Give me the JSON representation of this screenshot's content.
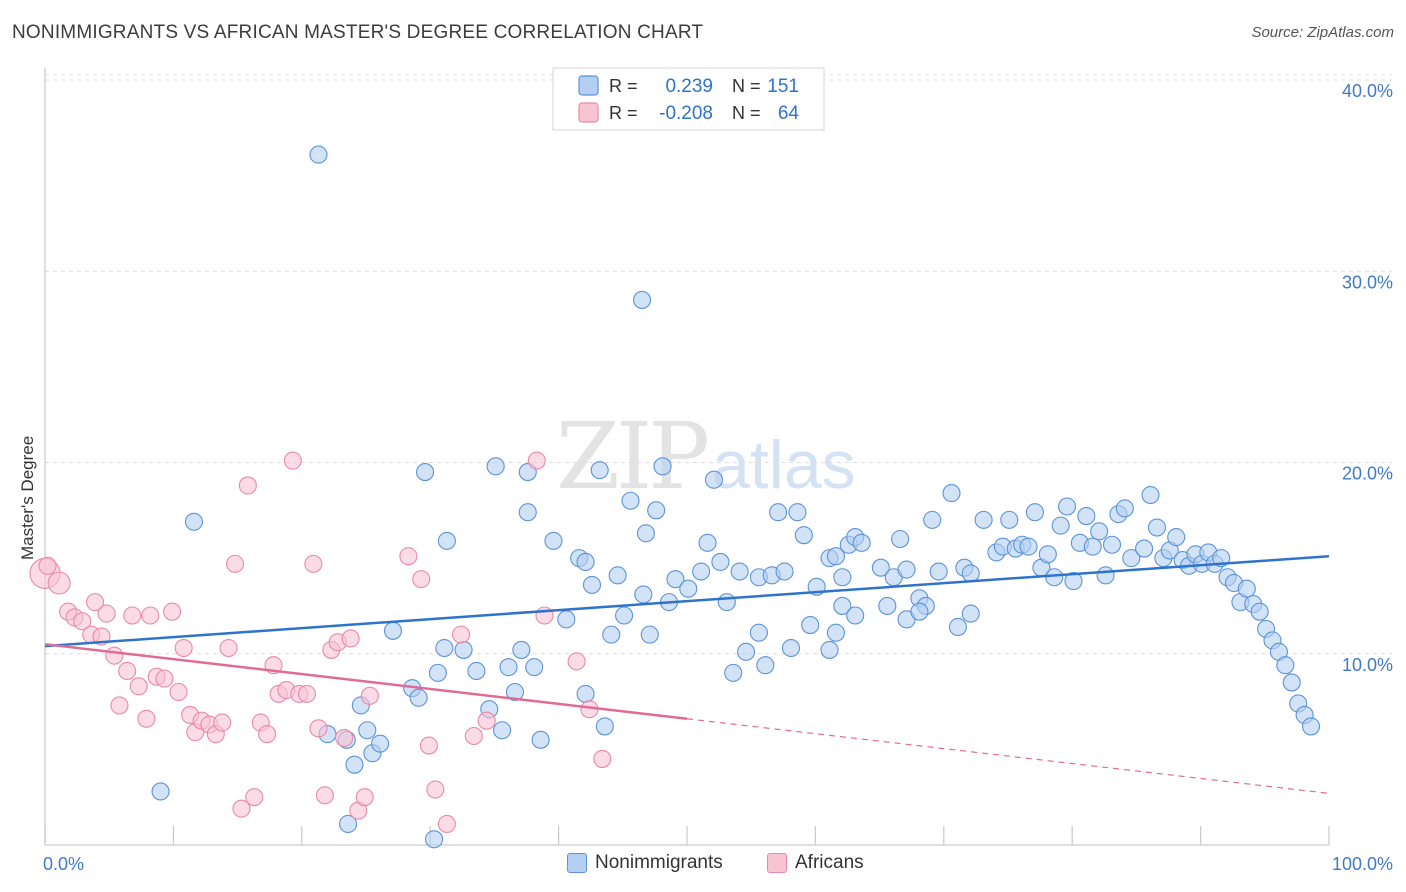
{
  "header": {
    "title": "NONIMMIGRANTS VS AFRICAN MASTER'S DEGREE CORRELATION CHART",
    "source": "Source: ZipAtlas.com"
  },
  "watermark": {
    "zip": "ZIP",
    "atlas": "atlas"
  },
  "colors": {
    "blue_fill": "#b4cff2",
    "blue_stroke": "#5b94d8",
    "blue_line": "#2f73cc",
    "pink_fill": "#f8c3d3",
    "pink_stroke": "#e98aa8",
    "pink_line": "#e06c96",
    "axis_text": "#3f7ac8"
  },
  "legend_top": {
    "rows": [
      {
        "r_label": "R =",
        "r_value": "0.239",
        "n_label": "N =",
        "n_value": "151"
      },
      {
        "r_label": "R =",
        "r_value": "-0.208",
        "n_label": "N =",
        "n_value": "64"
      }
    ]
  },
  "legend_bottom": {
    "items": [
      "Nonimmigrants",
      "Africans"
    ]
  },
  "chart_data": {
    "type": "scatter",
    "title": "NONIMMIGRANTS VS AFRICAN MASTER'S DEGREE CORRELATION CHART",
    "xlabel": "",
    "ylabel": "Master's Degree",
    "xlim": [
      0,
      100
    ],
    "ylim": [
      0,
      40
    ],
    "x_tick_labels": [
      "0.0%",
      "100.0%"
    ],
    "y_ticks": [
      10,
      20,
      30,
      40
    ],
    "y_tick_labels": [
      "10.0%",
      "20.0%",
      "30.0%",
      "40.0%"
    ],
    "grid": "horizontal dashed",
    "legend_position": "top-center",
    "series": [
      {
        "name": "Nonimmigrants",
        "r": 0.239,
        "n": 151,
        "trend": {
          "x": [
            0,
            100
          ],
          "y": [
            10.4,
            15.1
          ],
          "style": "solid"
        },
        "points": [
          [
            21.3,
            36.1
          ],
          [
            46.5,
            28.5
          ],
          [
            11.6,
            16.9
          ],
          [
            29.6,
            19.5
          ],
          [
            35.1,
            19.8
          ],
          [
            37.6,
            19.5
          ],
          [
            43.2,
            19.6
          ],
          [
            48.1,
            19.8
          ],
          [
            52.1,
            19.1
          ],
          [
            31.3,
            15.9
          ],
          [
            37.6,
            17.4
          ],
          [
            39.6,
            15.9
          ],
          [
            41.6,
            15.0
          ],
          [
            45.6,
            18.0
          ],
          [
            46.8,
            16.3
          ],
          [
            47.6,
            17.5
          ],
          [
            42.1,
            14.8
          ],
          [
            42.6,
            13.6
          ],
          [
            44.6,
            14.1
          ],
          [
            46.6,
            13.1
          ],
          [
            48.6,
            12.7
          ],
          [
            49.1,
            13.9
          ],
          [
            50.1,
            13.4
          ],
          [
            51.1,
            14.3
          ],
          [
            51.6,
            15.8
          ],
          [
            52.6,
            14.8
          ],
          [
            53.1,
            12.7
          ],
          [
            54.1,
            14.3
          ],
          [
            55.6,
            14.0
          ],
          [
            56.6,
            14.1
          ],
          [
            57.1,
            17.4
          ],
          [
            57.6,
            14.3
          ],
          [
            58.6,
            17.4
          ],
          [
            59.1,
            16.2
          ],
          [
            60.1,
            13.5
          ],
          [
            61.1,
            15.0
          ],
          [
            61.6,
            15.1
          ],
          [
            62.1,
            14.0
          ],
          [
            62.6,
            15.7
          ],
          [
            63.1,
            16.1
          ],
          [
            63.6,
            15.8
          ],
          [
            65.1,
            14.5
          ],
          [
            66.1,
            14.0
          ],
          [
            66.6,
            16.0
          ],
          [
            67.1,
            14.4
          ],
          [
            68.1,
            12.9
          ],
          [
            68.6,
            12.5
          ],
          [
            69.1,
            17.0
          ],
          [
            69.6,
            14.3
          ],
          [
            70.6,
            18.4
          ],
          [
            71.6,
            14.5
          ],
          [
            72.1,
            14.2
          ],
          [
            73.1,
            17.0
          ],
          [
            74.1,
            15.3
          ],
          [
            74.6,
            15.6
          ],
          [
            75.1,
            17.0
          ],
          [
            75.6,
            15.5
          ],
          [
            76.1,
            15.7
          ],
          [
            76.6,
            15.6
          ],
          [
            77.1,
            17.4
          ],
          [
            77.6,
            14.5
          ],
          [
            78.1,
            15.2
          ],
          [
            78.6,
            14.0
          ],
          [
            79.1,
            16.7
          ],
          [
            79.6,
            17.7
          ],
          [
            80.1,
            13.8
          ],
          [
            80.6,
            15.8
          ],
          [
            81.1,
            17.2
          ],
          [
            81.6,
            15.6
          ],
          [
            82.1,
            16.4
          ],
          [
            82.6,
            14.1
          ],
          [
            83.1,
            15.7
          ],
          [
            83.6,
            17.3
          ],
          [
            84.1,
            17.6
          ],
          [
            84.6,
            15.0
          ],
          [
            85.6,
            15.5
          ],
          [
            86.1,
            18.3
          ],
          [
            86.6,
            16.6
          ],
          [
            87.1,
            15.0
          ],
          [
            87.6,
            15.4
          ],
          [
            88.1,
            16.1
          ],
          [
            88.6,
            14.9
          ],
          [
            89.1,
            14.6
          ],
          [
            89.6,
            15.2
          ],
          [
            90.1,
            14.7
          ],
          [
            90.6,
            15.3
          ],
          [
            91.1,
            14.7
          ],
          [
            91.6,
            15.0
          ],
          [
            92.1,
            14.0
          ],
          [
            92.6,
            13.7
          ],
          [
            93.1,
            12.7
          ],
          [
            93.6,
            13.4
          ],
          [
            94.1,
            12.6
          ],
          [
            94.6,
            12.2
          ],
          [
            95.1,
            11.3
          ],
          [
            95.6,
            10.7
          ],
          [
            96.1,
            10.1
          ],
          [
            96.6,
            9.4
          ],
          [
            97.1,
            8.5
          ],
          [
            97.6,
            7.4
          ],
          [
            98.1,
            6.8
          ],
          [
            98.6,
            6.2
          ],
          [
            9.0,
            2.8
          ],
          [
            22.0,
            5.8
          ],
          [
            23.5,
            5.5
          ],
          [
            24.1,
            4.2
          ],
          [
            24.6,
            7.3
          ],
          [
            25.1,
            6.0
          ],
          [
            25.5,
            4.8
          ],
          [
            26.1,
            5.3
          ],
          [
            27.1,
            11.2
          ],
          [
            28.6,
            8.2
          ],
          [
            29.1,
            7.7
          ],
          [
            30.6,
            9.0
          ],
          [
            31.1,
            10.3
          ],
          [
            32.6,
            10.2
          ],
          [
            33.6,
            9.1
          ],
          [
            34.6,
            7.1
          ],
          [
            35.6,
            6.0
          ],
          [
            36.1,
            9.3
          ],
          [
            36.6,
            8.0
          ],
          [
            37.1,
            10.2
          ],
          [
            38.1,
            9.3
          ],
          [
            38.6,
            5.5
          ],
          [
            40.6,
            11.8
          ],
          [
            42.1,
            7.9
          ],
          [
            43.6,
            6.2
          ],
          [
            44.1,
            11.0
          ],
          [
            45.1,
            12.0
          ],
          [
            47.1,
            11.0
          ],
          [
            53.6,
            9.0
          ],
          [
            54.6,
            10.1
          ],
          [
            55.6,
            11.1
          ],
          [
            56.1,
            9.4
          ],
          [
            58.1,
            10.3
          ],
          [
            59.6,
            11.5
          ],
          [
            61.1,
            10.2
          ],
          [
            61.6,
            11.1
          ],
          [
            62.1,
            12.5
          ],
          [
            63.1,
            12.0
          ],
          [
            65.6,
            12.5
          ],
          [
            67.1,
            11.8
          ],
          [
            68.1,
            12.2
          ],
          [
            71.1,
            11.4
          ],
          [
            72.1,
            12.1
          ],
          [
            23.6,
            1.1
          ],
          [
            30.3,
            0.3
          ]
        ]
      },
      {
        "name": "Africans",
        "r": -0.208,
        "n": 64,
        "trend": {
          "x": [
            0,
            50
          ],
          "y": [
            10.5,
            6.6
          ],
          "style": "solid",
          "extended": {
            "x": [
              50,
              100
            ],
            "y": [
              6.6,
              2.7
            ],
            "style": "dashed"
          }
        },
        "points": [
          [
            0.0,
            14.2
          ],
          [
            1.1,
            13.7
          ],
          [
            1.8,
            12.2
          ],
          [
            2.3,
            11.9
          ],
          [
            2.9,
            11.7
          ],
          [
            3.6,
            11.0
          ],
          [
            3.9,
            12.7
          ],
          [
            4.4,
            10.9
          ],
          [
            4.8,
            12.1
          ],
          [
            5.4,
            9.9
          ],
          [
            5.8,
            7.3
          ],
          [
            6.4,
            9.1
          ],
          [
            6.8,
            12.0
          ],
          [
            7.3,
            8.3
          ],
          [
            7.9,
            6.6
          ],
          [
            8.2,
            12.0
          ],
          [
            8.7,
            8.8
          ],
          [
            9.3,
            8.7
          ],
          [
            9.9,
            12.2
          ],
          [
            10.4,
            8.0
          ],
          [
            10.8,
            10.3
          ],
          [
            11.3,
            6.8
          ],
          [
            11.7,
            5.9
          ],
          [
            12.2,
            6.5
          ],
          [
            12.8,
            6.3
          ],
          [
            13.3,
            5.8
          ],
          [
            13.8,
            6.4
          ],
          [
            14.3,
            10.3
          ],
          [
            14.8,
            14.7
          ],
          [
            15.3,
            1.9
          ],
          [
            15.8,
            18.8
          ],
          [
            16.3,
            2.5
          ],
          [
            16.8,
            6.4
          ],
          [
            17.3,
            5.8
          ],
          [
            17.8,
            9.4
          ],
          [
            18.2,
            7.9
          ],
          [
            18.8,
            8.1
          ],
          [
            19.3,
            20.1
          ],
          [
            19.8,
            7.9
          ],
          [
            20.4,
            7.9
          ],
          [
            20.9,
            14.7
          ],
          [
            21.3,
            6.1
          ],
          [
            21.8,
            2.6
          ],
          [
            22.3,
            10.2
          ],
          [
            22.8,
            10.6
          ],
          [
            23.3,
            5.6
          ],
          [
            23.8,
            10.8
          ],
          [
            24.4,
            1.8
          ],
          [
            24.9,
            2.5
          ],
          [
            25.3,
            7.8
          ],
          [
            28.3,
            15.1
          ],
          [
            29.3,
            13.9
          ],
          [
            29.9,
            5.2
          ],
          [
            30.4,
            2.9
          ],
          [
            31.3,
            1.1
          ],
          [
            32.4,
            11.0
          ],
          [
            33.4,
            5.7
          ],
          [
            34.4,
            6.5
          ],
          [
            38.3,
            20.1
          ],
          [
            38.9,
            12.0
          ],
          [
            41.4,
            9.6
          ],
          [
            42.4,
            7.1
          ],
          [
            43.4,
            4.5
          ],
          [
            0.2,
            14.6
          ]
        ]
      }
    ]
  }
}
